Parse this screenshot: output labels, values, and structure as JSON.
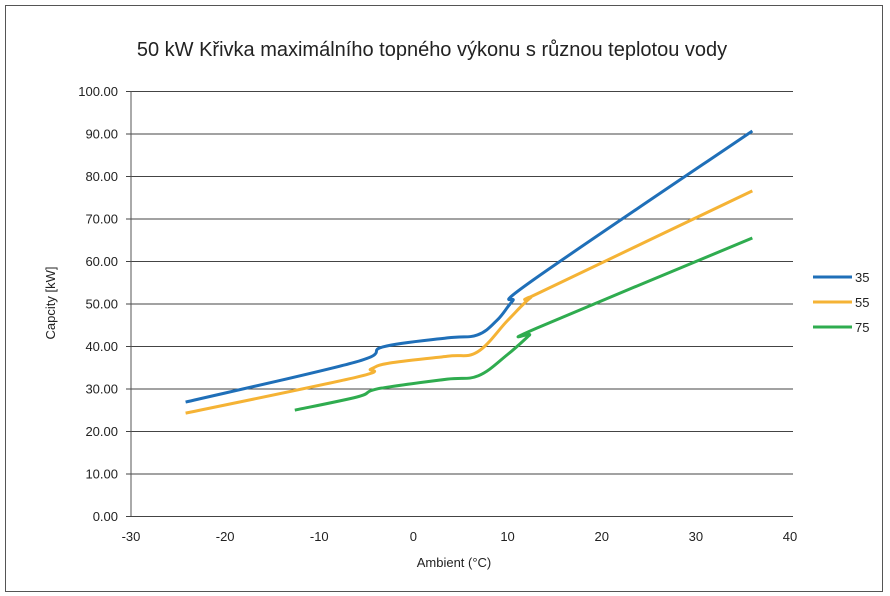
{
  "chart_data": {
    "type": "line",
    "title": "50 kW Křivka maximálního topného výkonu s různou teplotou vody",
    "xlabel": "Ambient (°C)",
    "ylabel": "Capcity [kW]",
    "xlim": [
      -30,
      40
    ],
    "ylim": [
      0,
      100
    ],
    "xticks": [
      "-30",
      "-20",
      "-10",
      "0",
      "10",
      "20",
      "30",
      "40"
    ],
    "yticks": [
      "0.00",
      "10.00",
      "20.00",
      "30.00",
      "40.00",
      "50.00",
      "60.00",
      "70.00",
      "80.00",
      "90.00",
      "100.00"
    ],
    "grid": true,
    "legend_position": "right",
    "series": [
      {
        "name": "35",
        "color": "#1f6fb8",
        "points": [
          [
            -24.2,
            26.8
          ],
          [
            -6.2,
            36.2
          ],
          [
            -3.2,
            39.8
          ],
          [
            3.6,
            41.9
          ],
          [
            6.8,
            42.6
          ],
          [
            8.9,
            46.1
          ],
          [
            10.5,
            50.5
          ],
          [
            12.7,
            55.5
          ],
          [
            36,
            90.6
          ]
        ]
      },
      {
        "name": "55",
        "color": "#f5b335",
        "points": [
          [
            -24.2,
            24.2
          ],
          [
            -6.0,
            32.7
          ],
          [
            -4.5,
            34.6
          ],
          [
            -2.5,
            36.0
          ],
          [
            3.6,
            37.6
          ],
          [
            6.8,
            38.6
          ],
          [
            10.0,
            46.0
          ],
          [
            12.4,
            51.3
          ],
          [
            14.0,
            53.2
          ],
          [
            36,
            76.5
          ]
        ]
      },
      {
        "name": "75",
        "color": "#2fac4f",
        "points": [
          [
            -12.6,
            24.9
          ],
          [
            -6.0,
            28.0
          ],
          [
            -4.5,
            29.5
          ],
          [
            -2.5,
            30.4
          ],
          [
            3.6,
            32.2
          ],
          [
            6.9,
            33.0
          ],
          [
            10.0,
            38.0
          ],
          [
            12.3,
            42.5
          ],
          [
            13.1,
            44.2
          ],
          [
            36,
            65.4
          ]
        ]
      }
    ]
  }
}
